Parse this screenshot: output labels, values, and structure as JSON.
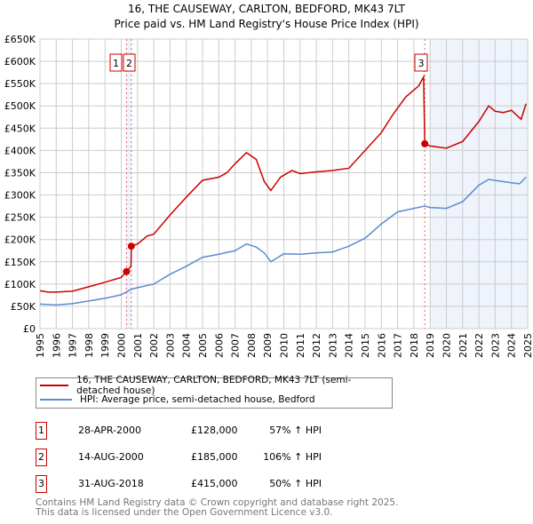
{
  "chart_data": {
    "type": "line",
    "title": "16, THE CAUSEWAY, CARLTON, BEDFORD, MK43 7LT",
    "subtitle": "Price paid vs. HM Land Registry's House Price Index (HPI)",
    "xlim": [
      1995,
      2025
    ],
    "ylim": [
      0,
      650000
    ],
    "x_ticks": [
      "1995",
      "1996",
      "1997",
      "1998",
      "1999",
      "2000",
      "2001",
      "2002",
      "2003",
      "2004",
      "2005",
      "2006",
      "2007",
      "2008",
      "2009",
      "2010",
      "2011",
      "2012",
      "2013",
      "2014",
      "2015",
      "2016",
      "2017",
      "2018",
      "2019",
      "2020",
      "2021",
      "2022",
      "2023",
      "2024",
      "2025"
    ],
    "y_ticks": [
      {
        "v": 0,
        "l": "£0"
      },
      {
        "v": 50000,
        "l": "£50K"
      },
      {
        "v": 100000,
        "l": "£100K"
      },
      {
        "v": 150000,
        "l": "£150K"
      },
      {
        "v": 200000,
        "l": "£200K"
      },
      {
        "v": 250000,
        "l": "£250K"
      },
      {
        "v": 300000,
        "l": "£300K"
      },
      {
        "v": 350000,
        "l": "£350K"
      },
      {
        "v": 400000,
        "l": "£400K"
      },
      {
        "v": 450000,
        "l": "£450K"
      },
      {
        "v": 500000,
        "l": "£500K"
      },
      {
        "v": 550000,
        "l": "£550K"
      },
      {
        "v": 600000,
        "l": "£600K"
      },
      {
        "v": 650000,
        "l": "£650K"
      }
    ],
    "grid": true,
    "series": [
      {
        "name": "16, THE CAUSEWAY, CARLTON, BEDFORD, MK43 7LT (semi-detached house)",
        "color": "#cc0000",
        "x": [
          1995,
          1995.5,
          1996,
          1997,
          1998,
          1999,
          2000,
          2000.32,
          2000.6,
          2000.62,
          2001,
          2001.6,
          2002,
          2003,
          2004,
          2005,
          2006,
          2006.5,
          2007,
          2007.7,
          2008.3,
          2008.8,
          2009.2,
          2009.8,
          2010.5,
          2011,
          2012,
          2013,
          2014,
          2015,
          2016,
          2016.7,
          2017.5,
          2018.3,
          2018.6,
          2018.67,
          2019,
          2020,
          2021,
          2022,
          2022.6,
          2023,
          2023.5,
          2024,
          2024.6,
          2024.9
        ],
        "y": [
          85000,
          82000,
          82000,
          84000,
          94000,
          104000,
          115000,
          128000,
          140000,
          185000,
          190000,
          208000,
          212000,
          255000,
          295000,
          333000,
          340000,
          350000,
          370000,
          395000,
          380000,
          330000,
          310000,
          340000,
          355000,
          348000,
          352000,
          355000,
          360000,
          400000,
          440000,
          480000,
          520000,
          545000,
          565000,
          415000,
          410000,
          405000,
          420000,
          465000,
          500000,
          488000,
          485000,
          490000,
          470000,
          505000
        ]
      },
      {
        "name": "HPI: Average price, semi-detached house, Bedford",
        "color": "#5b8bd0",
        "x": [
          1995,
          1996,
          1997,
          1998,
          1999,
          2000,
          2000.6,
          2001,
          2002,
          2003,
          2004,
          2005,
          2006,
          2007,
          2007.7,
          2008.3,
          2008.8,
          2009.2,
          2010,
          2011,
          2012,
          2013,
          2014,
          2015,
          2016,
          2017,
          2018,
          2018.67,
          2019,
          2020,
          2021,
          2022,
          2022.6,
          2023.5,
          2024.5,
          2024.9
        ],
        "y": [
          55000,
          53000,
          56000,
          62000,
          68000,
          76000,
          88000,
          92000,
          100000,
          122000,
          140000,
          160000,
          167000,
          175000,
          190000,
          183000,
          170000,
          150000,
          168000,
          167000,
          170000,
          172000,
          185000,
          203000,
          235000,
          262000,
          270000,
          275000,
          272000,
          270000,
          285000,
          322000,
          335000,
          330000,
          325000,
          340000
        ]
      }
    ],
    "sales": [
      {
        "label": "1",
        "x": 2000.32,
        "y": 128000,
        "date": "28-APR-2000",
        "price": "£128,000",
        "hpi": "57% ↑ HPI"
      },
      {
        "label": "2",
        "x": 2000.62,
        "y": 185000,
        "date": "14-AUG-2000",
        "price": "£185,000",
        "hpi": "106% ↑ HPI"
      },
      {
        "label": "3",
        "x": 2018.67,
        "y": 415000,
        "date": "31-AUG-2018",
        "price": "£415,000",
        "hpi": "50% ↑ HPI"
      }
    ],
    "shaded_from": 2019,
    "legend_position": "bottom"
  },
  "footer": [
    "Contains HM Land Registry data © Crown copyright and database right 2025.",
    "This data is licensed under the Open Government Licence v3.0."
  ]
}
